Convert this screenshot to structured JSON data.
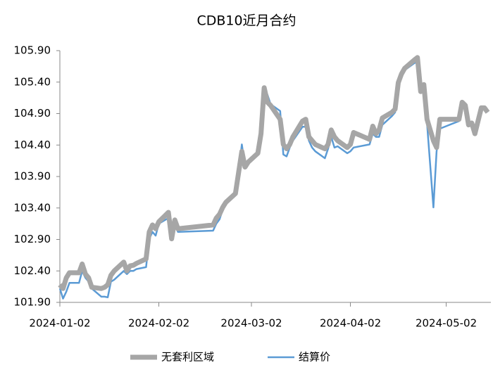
{
  "chart_data": {
    "type": "line",
    "title": "CDB10近月合约",
    "x": [
      "2024-01-02",
      "2024-01-03",
      "2024-01-04",
      "2024-01-05",
      "2024-01-08",
      "2024-01-09",
      "2024-01-10",
      "2024-01-11",
      "2024-01-12",
      "2024-01-15",
      "2024-01-16",
      "2024-01-17",
      "2024-01-18",
      "2024-01-19",
      "2024-01-22",
      "2024-01-23",
      "2024-01-24",
      "2024-01-25",
      "2024-01-26",
      "2024-01-29",
      "2024-01-30",
      "2024-01-31",
      "2024-02-01",
      "2024-02-02",
      "2024-02-05",
      "2024-02-06",
      "2024-02-07",
      "2024-02-08",
      "2024-02-19",
      "2024-02-20",
      "2024-02-21",
      "2024-02-22",
      "2024-02-23",
      "2024-02-26",
      "2024-02-27",
      "2024-02-28",
      "2024-02-29",
      "2024-03-01",
      "2024-03-04",
      "2024-03-05",
      "2024-03-06",
      "2024-03-07",
      "2024-03-08",
      "2024-03-11",
      "2024-03-12",
      "2024-03-13",
      "2024-03-14",
      "2024-03-15",
      "2024-03-18",
      "2024-03-19",
      "2024-03-20",
      "2024-03-21",
      "2024-03-22",
      "2024-03-25",
      "2024-03-26",
      "2024-03-27",
      "2024-03-28",
      "2024-03-29",
      "2024-04-01",
      "2024-04-02",
      "2024-04-03",
      "2024-04-08",
      "2024-04-09",
      "2024-04-10",
      "2024-04-11",
      "2024-04-12",
      "2024-04-15",
      "2024-04-16",
      "2024-04-17",
      "2024-04-18",
      "2024-04-19",
      "2024-04-22",
      "2024-04-23",
      "2024-04-24",
      "2024-04-25",
      "2024-04-26",
      "2024-04-28",
      "2024-04-29",
      "2024-04-30",
      "2024-05-06",
      "2024-05-07",
      "2024-05-08",
      "2024-05-09",
      "2024-05-10",
      "2024-05-11",
      "2024-05-13",
      "2024-05-14",
      "2024-05-15"
    ],
    "series": [
      {
        "name": "无套利区域",
        "color": "#a6a6a6",
        "width": 7,
        "values": [
          102.18,
          102.12,
          102.29,
          102.37,
          102.37,
          102.51,
          102.35,
          102.29,
          102.14,
          102.12,
          102.14,
          102.18,
          102.33,
          102.4,
          102.54,
          102.4,
          102.48,
          102.49,
          102.52,
          102.59,
          103.02,
          103.13,
          103.07,
          103.18,
          103.33,
          102.91,
          103.21,
          103.07,
          103.13,
          103.24,
          103.3,
          103.41,
          103.49,
          103.63,
          103.97,
          104.3,
          104.05,
          104.13,
          104.27,
          104.58,
          105.31,
          105.08,
          105.03,
          104.81,
          104.41,
          104.34,
          104.41,
          104.53,
          104.78,
          104.81,
          104.53,
          104.47,
          104.41,
          104.34,
          104.41,
          104.64,
          104.53,
          104.47,
          104.36,
          104.41,
          104.6,
          104.49,
          104.7,
          104.58,
          104.64,
          104.83,
          104.92,
          104.97,
          105.39,
          105.53,
          105.62,
          105.75,
          105.79,
          105.25,
          105.36,
          104.81,
          104.47,
          104.36,
          104.81,
          104.81,
          105.08,
          105.03,
          104.72,
          104.75,
          104.58,
          104.99,
          104.99,
          104.92
        ]
      },
      {
        "name": "结算价",
        "color": "#5b9bd5",
        "width": 2.5,
        "values": [
          102.12,
          101.96,
          102.07,
          102.21,
          102.21,
          102.4,
          102.29,
          102.23,
          102.12,
          101.99,
          101.99,
          101.98,
          102.23,
          102.26,
          102.4,
          102.35,
          102.4,
          102.4,
          102.43,
          102.46,
          102.91,
          103.02,
          102.96,
          103.15,
          103.24,
          102.91,
          103.13,
          103.02,
          103.04,
          103.15,
          103.22,
          103.37,
          103.46,
          103.6,
          103.97,
          104.41,
          104.05,
          104.13,
          104.3,
          104.58,
          105.25,
          105.2,
          105.05,
          104.94,
          104.25,
          104.22,
          104.36,
          104.47,
          104.69,
          104.69,
          104.47,
          104.36,
          104.3,
          104.19,
          104.34,
          104.53,
          104.36,
          104.38,
          104.27,
          104.3,
          104.36,
          104.41,
          104.58,
          104.53,
          104.53,
          104.72,
          104.86,
          104.92,
          105.34,
          105.5,
          105.59,
          105.7,
          105.73,
          105.25,
          105.36,
          104.75,
          103.41,
          104.3,
          104.66,
          104.78,
          105.08,
          105.03,
          104.72,
          104.75,
          104.58,
          104.99,
          104.99,
          104.92
        ]
      }
    ],
    "xlim": [
      "2024-01-02",
      "2024-05-16"
    ],
    "xticks": [
      "2024-01-02",
      "2024-02-02",
      "2024-03-02",
      "2024-04-02",
      "2024-05-02"
    ],
    "ylim": [
      101.9,
      105.9
    ],
    "yticks": [
      {
        "value": 101.9,
        "label": "101.90"
      },
      {
        "value": 102.4,
        "label": "102.40"
      },
      {
        "value": 102.9,
        "label": "102.90"
      },
      {
        "value": 103.4,
        "label": "103.40"
      },
      {
        "value": 103.9,
        "label": "103.90"
      },
      {
        "value": 104.4,
        "label": "104.40"
      },
      {
        "value": 104.9,
        "label": "104.90"
      },
      {
        "value": 105.4,
        "label": "105.40"
      },
      {
        "value": 105.9,
        "label": "105.90"
      }
    ],
    "grid": false,
    "legend": "bottom"
  }
}
